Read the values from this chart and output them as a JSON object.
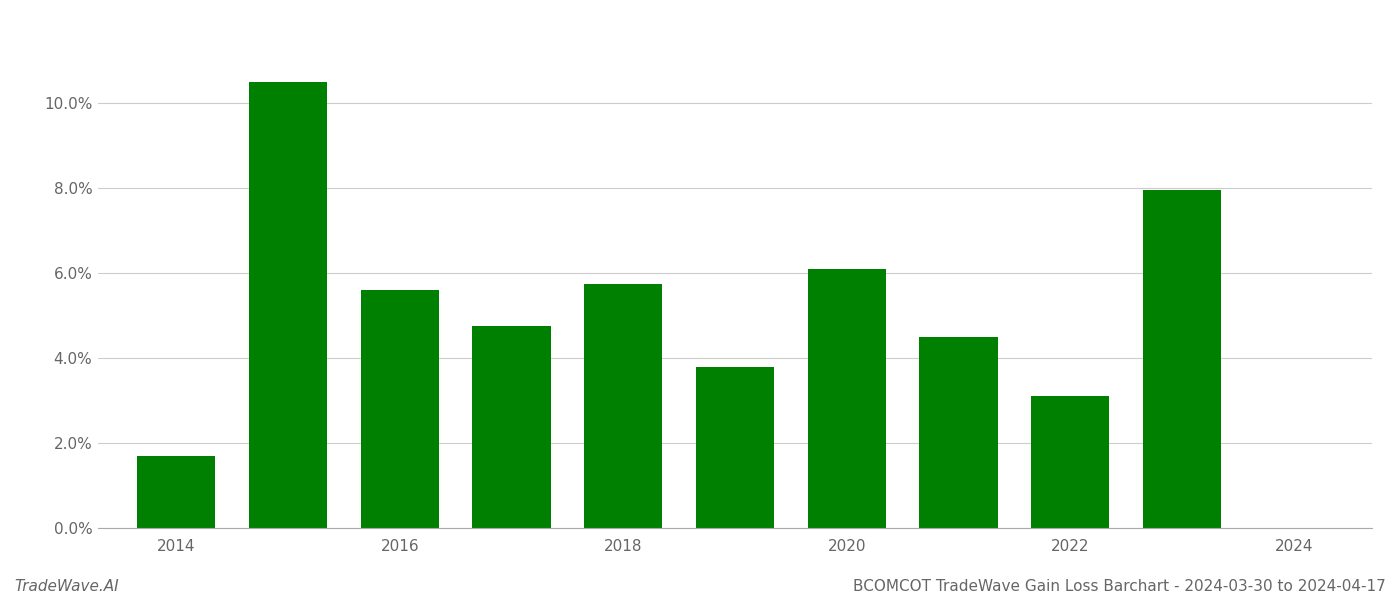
{
  "years": [
    2014,
    2015,
    2016,
    2017,
    2018,
    2019,
    2020,
    2021,
    2022,
    2023
  ],
  "values": [
    0.017,
    0.105,
    0.056,
    0.0475,
    0.0575,
    0.038,
    0.061,
    0.045,
    0.031,
    0.0795
  ],
  "bar_color": "#008000",
  "background_color": "#ffffff",
  "grid_color": "#cccccc",
  "title": "BCOMCOT TradeWave Gain Loss Barchart - 2024-03-30 to 2024-04-17",
  "watermark": "TradeWave.AI",
  "ylim": [
    0,
    0.12
  ],
  "yticks": [
    0.0,
    0.02,
    0.04,
    0.06,
    0.08,
    0.1
  ],
  "xtick_years": [
    2014,
    2016,
    2018,
    2020,
    2022,
    2024
  ],
  "title_fontsize": 11,
  "watermark_fontsize": 11,
  "tick_fontsize": 11,
  "bar_width": 0.7
}
